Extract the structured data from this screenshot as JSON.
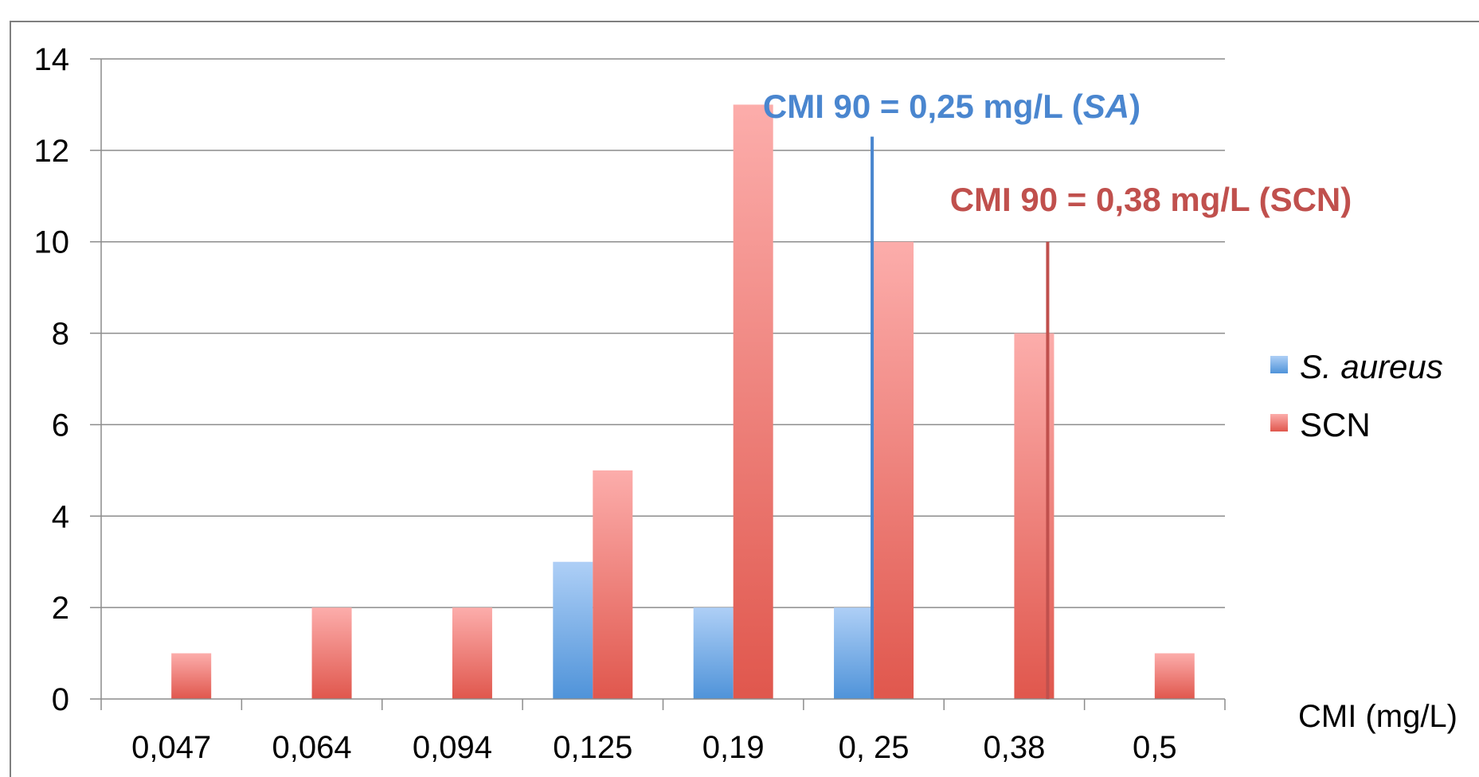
{
  "chart_data": {
    "type": "bar",
    "categories": [
      "0,047",
      "0,064",
      "0,094",
      "0,125",
      "0,19",
      "0, 25",
      "0,38",
      "0,5"
    ],
    "series": [
      {
        "name": "S. aureus",
        "values": [
          0,
          0,
          0,
          3,
          2,
          2,
          0,
          0
        ],
        "color": "#5b9bd5"
      },
      {
        "name": "SCN",
        "values": [
          1,
          2,
          2,
          5,
          13,
          10,
          8,
          1
        ],
        "color": "#e05a50"
      }
    ],
    "xlabel": "CMI (mg/L)",
    "ylabel": "",
    "ylim": [
      0,
      14
    ],
    "yticks": [
      0,
      2,
      4,
      6,
      8,
      10,
      12,
      14
    ],
    "grid": true,
    "legend": "right",
    "annotations": [
      {
        "text_prefix": "CMI 90 = 0,25 mg/L (",
        "text_em": "SA",
        "text_suffix": ")",
        "x": 0.25,
        "y_top": 12.3,
        "color": "#4a86cf"
      },
      {
        "text_prefix": "CMI 90 = 0,38 mg/L (SCN)",
        "text_em": "",
        "text_suffix": "",
        "x": 0.38,
        "y_top": 10,
        "color": "#c0504d"
      }
    ]
  }
}
